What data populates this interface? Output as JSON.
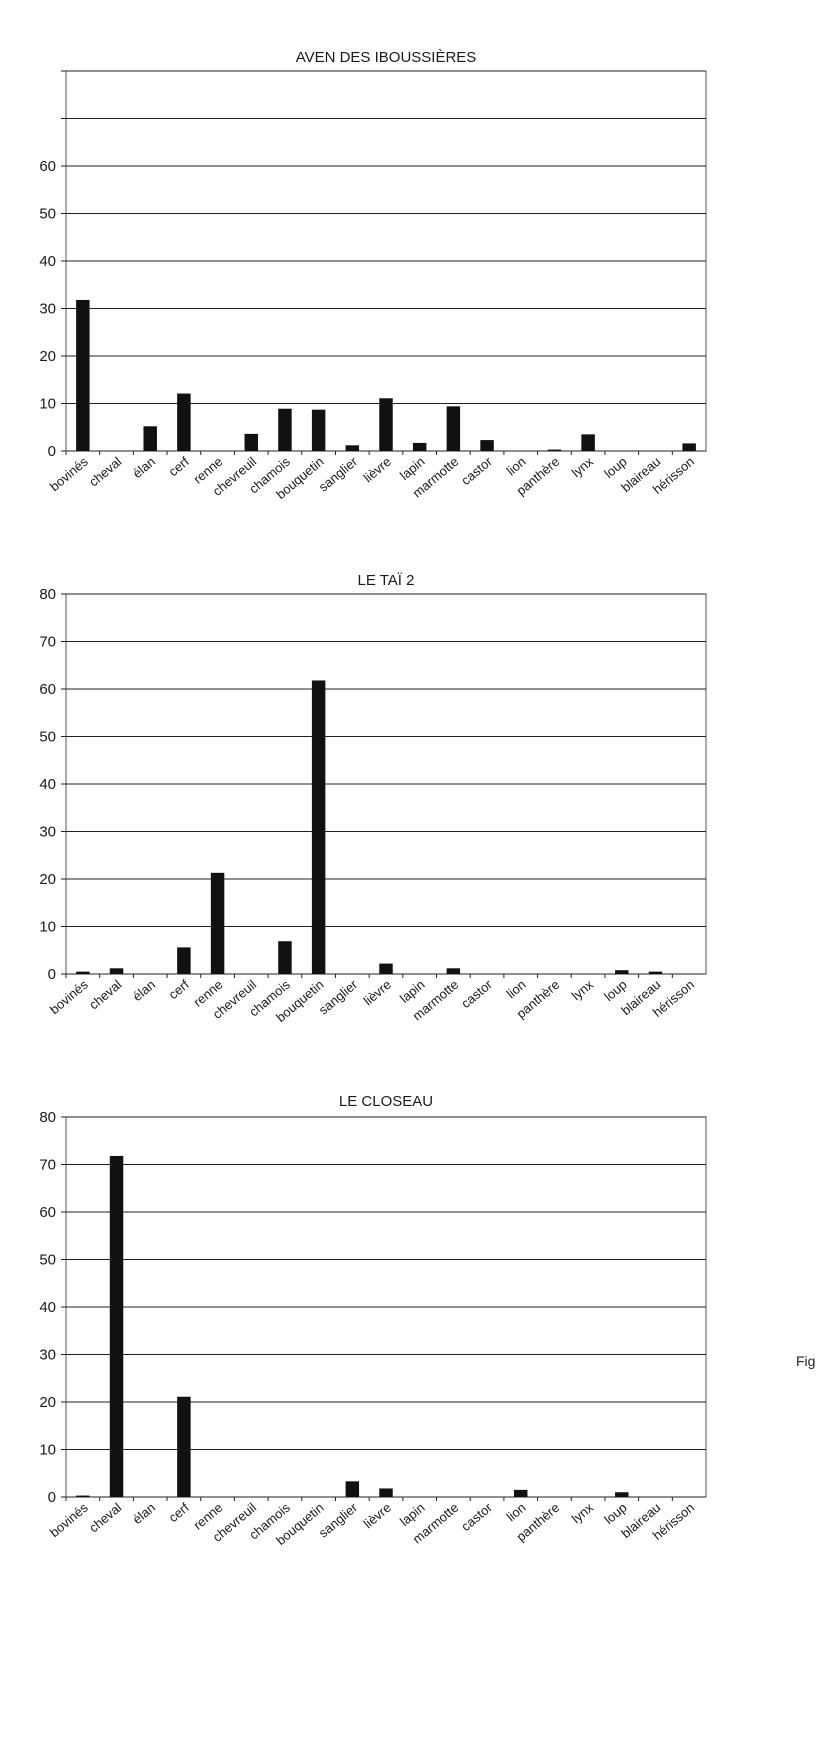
{
  "margin_text": "Fig",
  "chart_data": [
    {
      "type": "bar",
      "title": "AVEN DES IBOUSSIÈRES",
      "categories": [
        "bovinés",
        "cheval",
        "élan",
        "cerf",
        "renne",
        "chevreuil",
        "chamois",
        "bouquetin",
        "sanglier",
        "lièvre",
        "lapin",
        "marmotte",
        "castor",
        "lion",
        "panthère",
        "lynx",
        "loup",
        "blaireau",
        "hérisson"
      ],
      "values": [
        31.8,
        0,
        5.2,
        12.1,
        0,
        3.6,
        8.9,
        8.7,
        1.2,
        11.1,
        1.7,
        9.4,
        2.3,
        0,
        0.3,
        3.5,
        0,
        0,
        1.6
      ],
      "yticks": [
        0,
        10,
        20,
        30,
        40,
        50,
        60
      ],
      "ylim": [
        0,
        80
      ],
      "xlabel": "",
      "ylabel": "",
      "grid": true,
      "legend": "none"
    },
    {
      "type": "bar",
      "title": "LE TAÏ 2",
      "categories": [
        "bovinés",
        "cheval",
        "élan",
        "cerf",
        "renne",
        "chevreuil",
        "chamois",
        "bouquetin",
        "sanglier",
        "lièvre",
        "lapin",
        "marmotte",
        "castor",
        "lion",
        "panthère",
        "lynx",
        "loup",
        "blaireau",
        "hérisson"
      ],
      "values": [
        0.5,
        1.2,
        0,
        5.6,
        21.3,
        0,
        6.9,
        61.8,
        0,
        2.2,
        0,
        1.2,
        0,
        0,
        0,
        0,
        0.8,
        0.5,
        0
      ],
      "yticks": [
        0,
        10,
        20,
        30,
        40,
        50,
        60,
        70,
        80
      ],
      "ylim": [
        0,
        80
      ],
      "xlabel": "",
      "ylabel": "",
      "grid": true,
      "legend": "none"
    },
    {
      "type": "bar",
      "title": "LE CLOSEAU",
      "categories": [
        "bovinés",
        "cheval",
        "élan",
        "cerf",
        "renne",
        "chevreuil",
        "chamois",
        "bouquetin",
        "sanglier",
        "lièvre",
        "lapin",
        "marmotte",
        "castor",
        "lion",
        "panthère",
        "lynx",
        "loup",
        "blaireau",
        "hérisson"
      ],
      "values": [
        0.3,
        71.8,
        0,
        21.1,
        0,
        0,
        0,
        0,
        3.3,
        1.8,
        0,
        0,
        0,
        1.5,
        0,
        0,
        1.0,
        0,
        0
      ],
      "yticks": [
        0,
        10,
        20,
        30,
        40,
        50,
        60,
        70,
        80
      ],
      "ylim": [
        0,
        80
      ],
      "xlabel": "",
      "ylabel": "",
      "grid": true,
      "legend": "none"
    }
  ]
}
